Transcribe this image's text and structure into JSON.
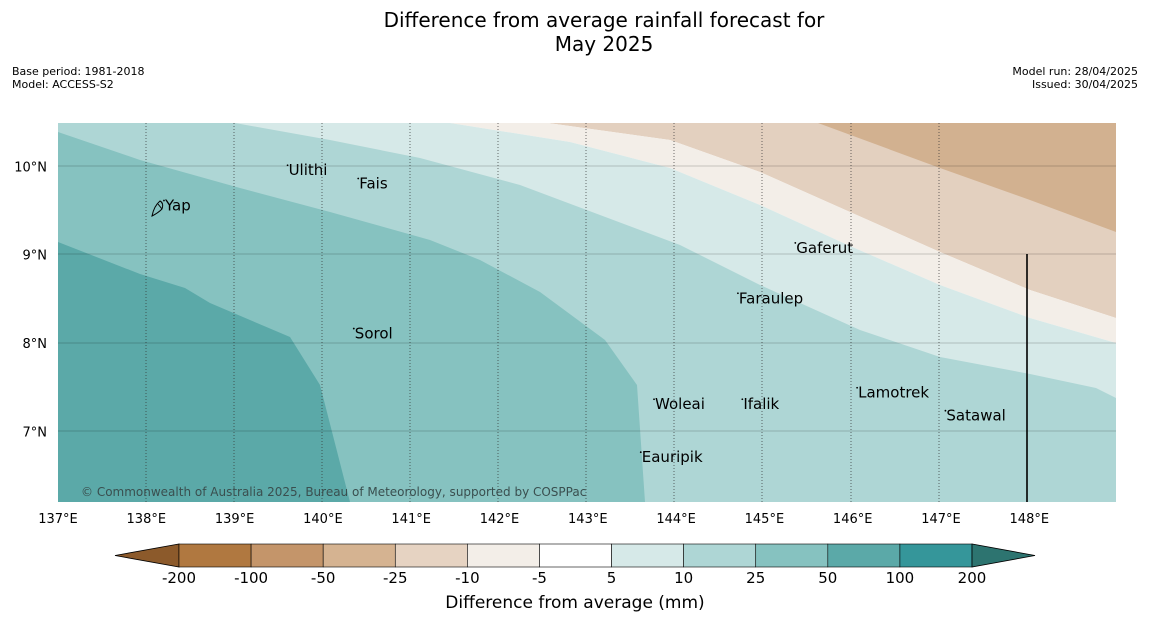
{
  "header": {
    "title_line1": "Difference from average rainfall forecast for",
    "title_line2": "May 2025",
    "base_period": "Base period: 1981-2018",
    "model": "Model: ACCESS-S2",
    "model_run": "Model run: 28/04/2025",
    "issued": "Issued: 30/04/2025"
  },
  "map": {
    "lon_labels": [
      "137°E",
      "138°E",
      "139°E",
      "140°E",
      "141°E",
      "142°E",
      "143°E",
      "144°E",
      "145°E",
      "146°E",
      "147°E",
      "148°E"
    ],
    "lat_labels": [
      "10°N",
      "9°N",
      "8°N",
      "7°N"
    ],
    "lon_range": [
      137,
      149
    ],
    "lat_range": [
      6.2,
      10.5
    ],
    "places": [
      {
        "name": "Ulithi",
        "lon": 139.6,
        "lat": 9.9
      },
      {
        "name": "Fais",
        "lon": 140.4,
        "lat": 9.75
      },
      {
        "name": "Yap",
        "lon": 138.2,
        "lat": 9.5
      },
      {
        "name": "Gaferut",
        "lon": 145.35,
        "lat": 9.02
      },
      {
        "name": "Faraulep",
        "lon": 144.7,
        "lat": 8.45
      },
      {
        "name": "Sorol",
        "lon": 140.35,
        "lat": 8.05
      },
      {
        "name": "Lamotrek",
        "lon": 146.05,
        "lat": 7.38
      },
      {
        "name": "Woleai",
        "lon": 143.75,
        "lat": 7.25
      },
      {
        "name": "Ifalik",
        "lon": 144.75,
        "lat": 7.25
      },
      {
        "name": "Satawal",
        "lon": 147.05,
        "lat": 7.12
      },
      {
        "name": "Eauripik",
        "lon": 143.6,
        "lat": 6.65
      }
    ],
    "copyright": "© Commonwealth of Australia 2025, Bureau of Meteorology, supported by COSPPac"
  },
  "colorbar": {
    "title": "Difference from average (mm)",
    "ticks": [
      "-200",
      "-100",
      "-50",
      "-25",
      "-10",
      "-5",
      "5",
      "10",
      "25",
      "50",
      "100",
      "200"
    ],
    "colors": [
      "#8c5a2b",
      "#b07840",
      "#c4956a",
      "#d5b391",
      "#e6d3c2",
      "#f3eee8",
      "#ffffff",
      "#d6e9e8",
      "#aed6d5",
      "#86c2c0",
      "#5ba9a8",
      "#35969a",
      "#2d7470"
    ]
  }
}
